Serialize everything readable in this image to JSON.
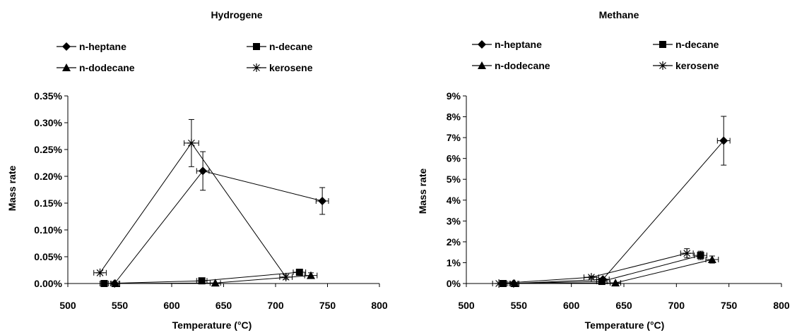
{
  "chart_data": [
    {
      "type": "scatter",
      "title": "Hydrogene",
      "xlabel": "Temperature (°C)",
      "ylabel": "Mass rate",
      "xlim": [
        500,
        800
      ],
      "ylim": [
        0,
        0.0035
      ],
      "xticks": [
        500,
        550,
        600,
        650,
        700,
        750,
        800
      ],
      "xtick_labels": [
        "500",
        "550",
        "600",
        "650",
        "700",
        "750",
        "800"
      ],
      "yticks": [
        0,
        0.0005,
        0.001,
        0.0015,
        0.002,
        0.0025,
        0.003,
        0.0035
      ],
      "ytick_labels": [
        "0.00%",
        "0.05%",
        "0.10%",
        "0.15%",
        "0.20%",
        "0.25%",
        "0.30%",
        "0.35%"
      ],
      "legend_position": "top",
      "grid": false,
      "series": [
        {
          "name": "n-heptane",
          "marker": "diamond",
          "points": [
            {
              "x": 545,
              "y": 0.0,
              "xerr": 4,
              "yerr": 0
            },
            {
              "x": 630,
              "y": 0.0021,
              "xerr": 6,
              "yerr": 0.00036
            },
            {
              "x": 745,
              "y": 0.00154,
              "xerr": 6,
              "yerr": 0.00025
            }
          ]
        },
        {
          "name": "n-decane",
          "marker": "square",
          "points": [
            {
              "x": 535,
              "y": 0.0,
              "xerr": 4,
              "yerr": 0
            },
            {
              "x": 629,
              "y": 5e-05,
              "xerr": 5,
              "yerr": 0
            },
            {
              "x": 723,
              "y": 0.00021,
              "xerr": 6,
              "yerr": 5e-05
            }
          ]
        },
        {
          "name": "n-dodecane",
          "marker": "triangle",
          "points": [
            {
              "x": 546,
              "y": 0.0,
              "xerr": 4,
              "yerr": 0
            },
            {
              "x": 642,
              "y": 1e-05,
              "xerr": 5,
              "yerr": 0
            },
            {
              "x": 734,
              "y": 0.00015,
              "xerr": 6,
              "yerr": 5e-05
            }
          ]
        },
        {
          "name": "kerosene",
          "marker": "star",
          "points": [
            {
              "x": 531,
              "y": 0.0002,
              "xerr": 6,
              "yerr": 0
            },
            {
              "x": 619,
              "y": 0.00262,
              "xerr": 7,
              "yerr": 0.00044
            },
            {
              "x": 710,
              "y": 0.00012,
              "xerr": 6,
              "yerr": 4e-05
            }
          ]
        }
      ]
    },
    {
      "type": "scatter",
      "title": "Methane",
      "xlabel": "Temperature (°C)",
      "ylabel": "Mass rate",
      "xlim": [
        500,
        800
      ],
      "ylim": [
        0,
        0.09
      ],
      "xticks": [
        500,
        550,
        600,
        650,
        700,
        750,
        800
      ],
      "xtick_labels": [
        "500",
        "550",
        "600",
        "650",
        "700",
        "750",
        "800"
      ],
      "yticks": [
        0,
        0.01,
        0.02,
        0.03,
        0.04,
        0.05,
        0.06,
        0.07,
        0.08,
        0.09
      ],
      "ytick_labels": [
        "0%",
        "1%",
        "2%",
        "3%",
        "4%",
        "5%",
        "6%",
        "7%",
        "8%",
        "9%"
      ],
      "legend_position": "top",
      "grid": false,
      "series": [
        {
          "name": "n-heptane",
          "marker": "diamond",
          "points": [
            {
              "x": 545,
              "y": 0.0,
              "xerr": 4,
              "yerr": 0
            },
            {
              "x": 630,
              "y": 0.002,
              "xerr": 6,
              "yerr": 0.0005
            },
            {
              "x": 745,
              "y": 0.0685,
              "xerr": 6,
              "yerr": 0.0117
            }
          ]
        },
        {
          "name": "n-decane",
          "marker": "square",
          "points": [
            {
              "x": 535,
              "y": 0.0,
              "xerr": 4,
              "yerr": 0
            },
            {
              "x": 629,
              "y": 0.001,
              "xerr": 5,
              "yerr": 0
            },
            {
              "x": 723,
              "y": 0.0135,
              "xerr": 6,
              "yerr": 0.002
            }
          ]
        },
        {
          "name": "n-dodecane",
          "marker": "triangle",
          "points": [
            {
              "x": 546,
              "y": 0.0,
              "xerr": 4,
              "yerr": 0
            },
            {
              "x": 642,
              "y": 0.0003,
              "xerr": 5,
              "yerr": 0
            },
            {
              "x": 734,
              "y": 0.0115,
              "xerr": 6,
              "yerr": 0.0017
            }
          ]
        },
        {
          "name": "kerosene",
          "marker": "star",
          "points": [
            {
              "x": 531,
              "y": 0.0,
              "xerr": 6,
              "yerr": 0
            },
            {
              "x": 619,
              "y": 0.003,
              "xerr": 7,
              "yerr": 0.0005
            },
            {
              "x": 710,
              "y": 0.0145,
              "xerr": 6,
              "yerr": 0.0022
            }
          ]
        }
      ]
    }
  ]
}
